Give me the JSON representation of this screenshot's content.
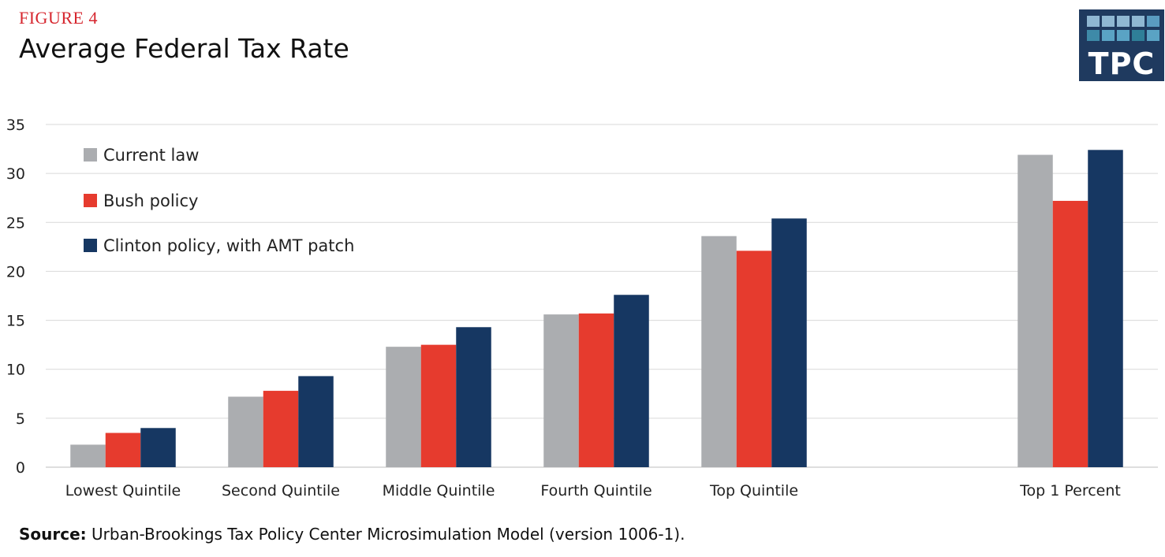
{
  "header": {
    "figure_label": "FIGURE 4",
    "title": "Average Federal Tax Rate"
  },
  "logo": {
    "text": "TPC"
  },
  "source": {
    "label": "Source:",
    "text": "Urban-Brookings Tax Policy Center Microsimulation Model (version 1006-1)."
  },
  "colors": {
    "current_law": "#abadb0",
    "bush": "#e63b2e",
    "clinton": "#163762",
    "grid": "#d9d9d9",
    "figure_label": "#d6262e",
    "logo_bg": "#1f3a5f"
  },
  "chart_data": {
    "type": "bar",
    "title": "Average Federal Tax Rate",
    "xlabel": "",
    "ylabel": "",
    "ylim": [
      0,
      35
    ],
    "yticks": [
      0,
      5,
      10,
      15,
      20,
      25,
      30,
      35
    ],
    "grid": true,
    "legend_position": "top-left",
    "categories": [
      "Lowest Quintile",
      "Second Quintile",
      "Middle Quintile",
      "Fourth Quintile",
      "Top Quintile",
      "Top 1 Percent"
    ],
    "series": [
      {
        "name": "Current law",
        "color": "#abadb0",
        "values": [
          2.3,
          7.2,
          12.3,
          15.6,
          23.6,
          31.9
        ]
      },
      {
        "name": "Bush policy",
        "color": "#e63b2e",
        "values": [
          3.5,
          7.8,
          12.5,
          15.7,
          22.1,
          27.2
        ]
      },
      {
        "name": "Clinton policy, with AMT patch",
        "color": "#163762",
        "values": [
          4.0,
          9.3,
          14.3,
          17.6,
          25.4,
          32.4
        ]
      }
    ]
  }
}
